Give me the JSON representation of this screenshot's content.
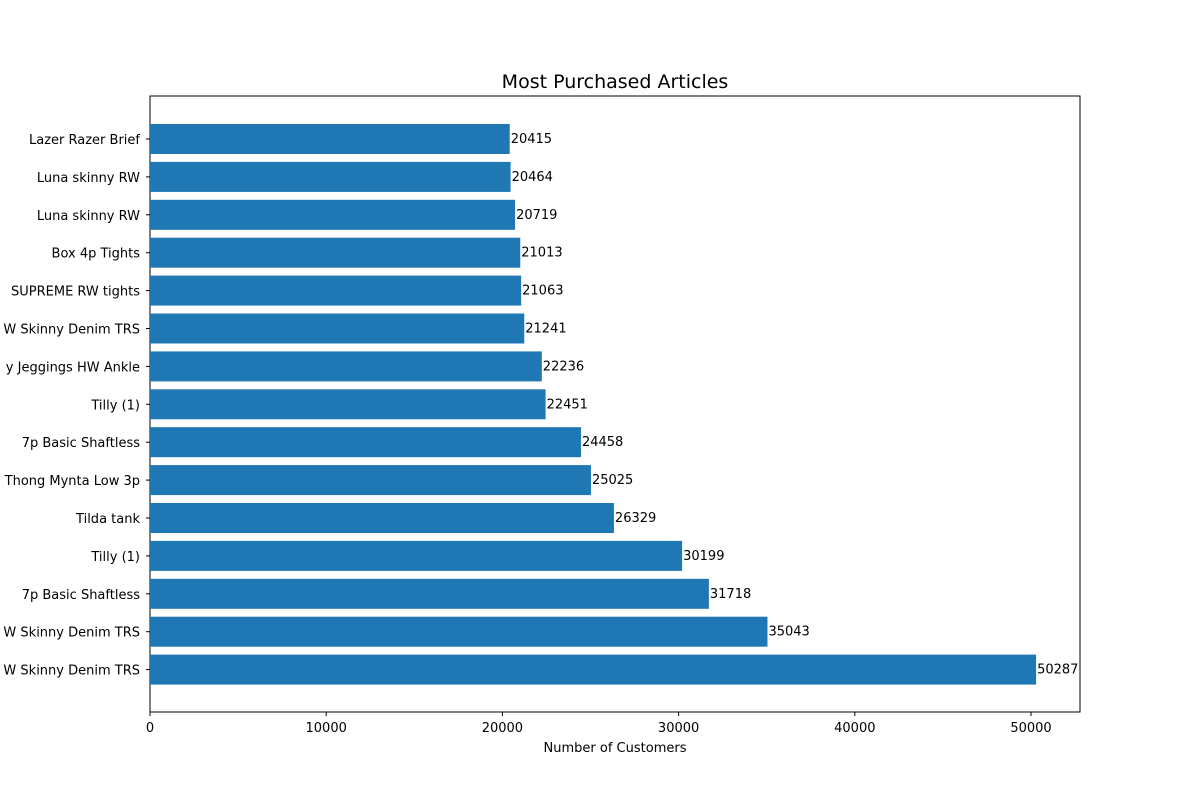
{
  "chart_data": {
    "type": "bar",
    "orientation": "horizontal",
    "title": "Most Purchased Articles",
    "xlabel": "Number of Customers",
    "ylabel": "",
    "xlim": [
      0,
      52780
    ],
    "xticks": [
      0,
      10000,
      20000,
      30000,
      40000,
      50000
    ],
    "grid": false,
    "bar_color": "#1f77b4",
    "categories": [
      "Lazer Razer Brief",
      "Luna skinny RW",
      "Luna skinny RW",
      "Box 4p Tights",
      "SUPREME RW tights",
      "W Skinny Denim TRS",
      "y Jeggings HW Ankle",
      "Tilly (1)",
      "7p Basic Shaftless",
      "Thong Mynta Low 3p",
      "Tilda tank",
      "Tilly (1)",
      "7p Basic Shaftless",
      "W Skinny Denim TRS",
      "W Skinny Denim TRS"
    ],
    "values": [
      20415,
      20464,
      20719,
      21013,
      21063,
      21241,
      22236,
      22451,
      24458,
      25025,
      26329,
      30199,
      31718,
      35043,
      50287
    ]
  }
}
